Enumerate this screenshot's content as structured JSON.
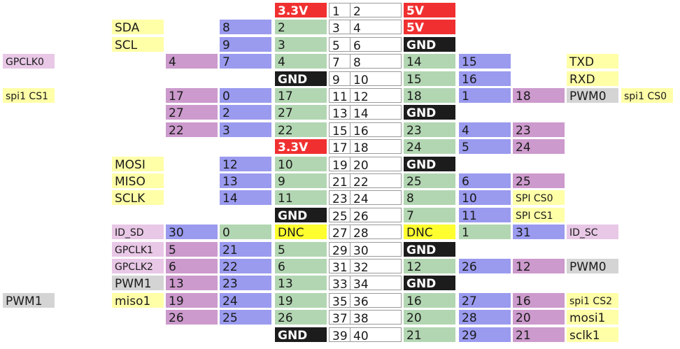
{
  "title": "",
  "colors": {
    "bcm": "#b2d6b2",
    "wpi": "#9a9aef",
    "alt": "#cc9acc",
    "fn": "#ffffa8",
    "pwm": "#d4d4d4",
    "id": "#e8c8e6",
    "power": "#f03030",
    "ground": "#1c1c1c",
    "dnc": "#ffff30",
    "pin": "#ffffff"
  },
  "left_columns": [
    "xfn",
    "fn",
    "alt",
    "wpi",
    "bcm",
    "pin"
  ],
  "right_columns": [
    "pin",
    "bcm",
    "wpi",
    "alt",
    "fn",
    "xfn"
  ],
  "rows": [
    {
      "left": [
        null,
        null,
        null,
        null,
        {
          "t": "3.3V",
          "c": "power"
        },
        {
          "t": "1",
          "c": "pin"
        }
      ],
      "right": [
        {
          "t": "2",
          "c": "pin"
        },
        {
          "t": "5V",
          "c": "power"
        },
        null,
        null,
        null,
        null
      ]
    },
    {
      "left": [
        null,
        {
          "t": "SDA",
          "c": "fn"
        },
        null,
        {
          "t": "8",
          "c": "wpi"
        },
        {
          "t": "2",
          "c": "bcm"
        },
        {
          "t": "3",
          "c": "pin"
        }
      ],
      "right": [
        {
          "t": "4",
          "c": "pin"
        },
        {
          "t": "5V",
          "c": "power"
        },
        null,
        null,
        null,
        null
      ]
    },
    {
      "left": [
        null,
        {
          "t": "SCL",
          "c": "fn"
        },
        null,
        {
          "t": "9",
          "c": "wpi"
        },
        {
          "t": "3",
          "c": "bcm"
        },
        {
          "t": "5",
          "c": "pin"
        }
      ],
      "right": [
        {
          "t": "6",
          "c": "pin"
        },
        {
          "t": "GND",
          "c": "ground"
        },
        null,
        null,
        null,
        null
      ]
    },
    {
      "left": [
        {
          "t": "GPCLK0",
          "c": "id"
        },
        null,
        {
          "t": "4",
          "c": "alt"
        },
        {
          "t": "7",
          "c": "wpi"
        },
        {
          "t": "4",
          "c": "bcm"
        },
        {
          "t": "7",
          "c": "pin"
        }
      ],
      "right": [
        {
          "t": "8",
          "c": "pin"
        },
        {
          "t": "14",
          "c": "bcm"
        },
        {
          "t": "15",
          "c": "wpi"
        },
        null,
        {
          "t": "TXD",
          "c": "fn"
        },
        null
      ]
    },
    {
      "left": [
        null,
        null,
        null,
        null,
        {
          "t": "GND",
          "c": "ground"
        },
        {
          "t": "9",
          "c": "pin"
        }
      ],
      "right": [
        {
          "t": "10",
          "c": "pin"
        },
        {
          "t": "15",
          "c": "bcm"
        },
        {
          "t": "16",
          "c": "wpi"
        },
        null,
        {
          "t": "RXD",
          "c": "fn"
        },
        null
      ]
    },
    {
      "left": [
        {
          "t": "spi1 CS1",
          "c": "fn"
        },
        null,
        {
          "t": "17",
          "c": "alt"
        },
        {
          "t": "0",
          "c": "wpi"
        },
        {
          "t": "17",
          "c": "bcm"
        },
        {
          "t": "11",
          "c": "pin"
        }
      ],
      "right": [
        {
          "t": "12",
          "c": "pin"
        },
        {
          "t": "18",
          "c": "bcm"
        },
        {
          "t": "1",
          "c": "wpi"
        },
        {
          "t": "18",
          "c": "alt"
        },
        {
          "t": "PWM0",
          "c": "pwm"
        },
        {
          "t": "spi1 CS0",
          "c": "fn"
        }
      ]
    },
    {
      "left": [
        null,
        null,
        {
          "t": "27",
          "c": "alt"
        },
        {
          "t": "2",
          "c": "wpi"
        },
        {
          "t": "27",
          "c": "bcm"
        },
        {
          "t": "13",
          "c": "pin"
        }
      ],
      "right": [
        {
          "t": "14",
          "c": "pin"
        },
        {
          "t": "GND",
          "c": "ground"
        },
        null,
        null,
        null,
        null
      ]
    },
    {
      "left": [
        null,
        null,
        {
          "t": "22",
          "c": "alt"
        },
        {
          "t": "3",
          "c": "wpi"
        },
        {
          "t": "22",
          "c": "bcm"
        },
        {
          "t": "15",
          "c": "pin"
        }
      ],
      "right": [
        {
          "t": "16",
          "c": "pin"
        },
        {
          "t": "23",
          "c": "bcm"
        },
        {
          "t": "4",
          "c": "wpi"
        },
        {
          "t": "23",
          "c": "alt"
        },
        null,
        null
      ]
    },
    {
      "left": [
        null,
        null,
        null,
        null,
        {
          "t": "3.3V",
          "c": "power"
        },
        {
          "t": "17",
          "c": "pin"
        }
      ],
      "right": [
        {
          "t": "18",
          "c": "pin"
        },
        {
          "t": "24",
          "c": "bcm"
        },
        {
          "t": "5",
          "c": "wpi"
        },
        {
          "t": "24",
          "c": "alt"
        },
        null,
        null
      ]
    },
    {
      "left": [
        null,
        {
          "t": "MOSI",
          "c": "fn"
        },
        null,
        {
          "t": "12",
          "c": "wpi"
        },
        {
          "t": "10",
          "c": "bcm"
        },
        {
          "t": "19",
          "c": "pin"
        }
      ],
      "right": [
        {
          "t": "20",
          "c": "pin"
        },
        {
          "t": "GND",
          "c": "ground"
        },
        null,
        null,
        null,
        null
      ]
    },
    {
      "left": [
        null,
        {
          "t": "MISO",
          "c": "fn"
        },
        null,
        {
          "t": "13",
          "c": "wpi"
        },
        {
          "t": "9",
          "c": "bcm"
        },
        {
          "t": "21",
          "c": "pin"
        }
      ],
      "right": [
        {
          "t": "22",
          "c": "pin"
        },
        {
          "t": "25",
          "c": "bcm"
        },
        {
          "t": "6",
          "c": "wpi"
        },
        {
          "t": "25",
          "c": "alt"
        },
        null,
        null
      ]
    },
    {
      "left": [
        null,
        {
          "t": "SCLK",
          "c": "fn"
        },
        null,
        {
          "t": "14",
          "c": "wpi"
        },
        {
          "t": "11",
          "c": "bcm"
        },
        {
          "t": "23",
          "c": "pin"
        }
      ],
      "right": [
        {
          "t": "24",
          "c": "pin"
        },
        {
          "t": "8",
          "c": "bcm"
        },
        {
          "t": "10",
          "c": "wpi"
        },
        {
          "t": "SPI CS0",
          "c": "fn"
        },
        null,
        null
      ]
    },
    {
      "left": [
        null,
        null,
        null,
        null,
        {
          "t": "GND",
          "c": "ground"
        },
        {
          "t": "25",
          "c": "pin"
        }
      ],
      "right": [
        {
          "t": "26",
          "c": "pin"
        },
        {
          "t": "7",
          "c": "bcm"
        },
        {
          "t": "11",
          "c": "wpi"
        },
        {
          "t": "SPI CS1",
          "c": "fn"
        },
        null,
        null
      ]
    },
    {
      "left": [
        null,
        {
          "t": "ID_SD",
          "c": "id"
        },
        {
          "t": "30",
          "c": "wpi"
        },
        {
          "t": "0",
          "c": "bcm"
        },
        {
          "t": "DNC",
          "c": "dnc"
        },
        {
          "t": "27",
          "c": "pin"
        }
      ],
      "right": [
        {
          "t": "28",
          "c": "pin"
        },
        {
          "t": "DNC",
          "c": "dnc"
        },
        {
          "t": "1",
          "c": "bcm"
        },
        {
          "t": "31",
          "c": "wpi"
        },
        {
          "t": "ID_SC",
          "c": "id"
        },
        null
      ]
    },
    {
      "left": [
        null,
        {
          "t": "GPCLK1",
          "c": "id"
        },
        {
          "t": "5",
          "c": "alt"
        },
        {
          "t": "21",
          "c": "wpi"
        },
        {
          "t": "5",
          "c": "bcm"
        },
        {
          "t": "29",
          "c": "pin"
        }
      ],
      "right": [
        {
          "t": "30",
          "c": "pin"
        },
        {
          "t": "GND",
          "c": "ground"
        },
        null,
        null,
        null,
        null
      ]
    },
    {
      "left": [
        null,
        {
          "t": "GPCLK2",
          "c": "id"
        },
        {
          "t": "6",
          "c": "alt"
        },
        {
          "t": "22",
          "c": "wpi"
        },
        {
          "t": "6",
          "c": "bcm"
        },
        {
          "t": "31",
          "c": "pin"
        }
      ],
      "right": [
        {
          "t": "32",
          "c": "pin"
        },
        {
          "t": "12",
          "c": "bcm"
        },
        {
          "t": "26",
          "c": "wpi"
        },
        {
          "t": "12",
          "c": "alt"
        },
        {
          "t": "PWM0",
          "c": "pwm"
        },
        null
      ]
    },
    {
      "left": [
        null,
        {
          "t": "PWM1",
          "c": "pwm"
        },
        {
          "t": "13",
          "c": "alt"
        },
        {
          "t": "23",
          "c": "wpi"
        },
        {
          "t": "13",
          "c": "bcm"
        },
        {
          "t": "33",
          "c": "pin"
        }
      ],
      "right": [
        {
          "t": "34",
          "c": "pin"
        },
        {
          "t": "GND",
          "c": "ground"
        },
        null,
        null,
        null,
        null
      ]
    },
    {
      "left": [
        {
          "t": "PWM1",
          "c": "pwm"
        },
        {
          "t": "miso1",
          "c": "fn"
        },
        {
          "t": "19",
          "c": "alt"
        },
        {
          "t": "24",
          "c": "wpi"
        },
        {
          "t": "19",
          "c": "bcm"
        },
        {
          "t": "35",
          "c": "pin"
        }
      ],
      "right": [
        {
          "t": "36",
          "c": "pin"
        },
        {
          "t": "16",
          "c": "bcm"
        },
        {
          "t": "27",
          "c": "wpi"
        },
        {
          "t": "16",
          "c": "alt"
        },
        {
          "t": "spi1 CS2",
          "c": "fn"
        },
        null
      ]
    },
    {
      "left": [
        null,
        null,
        {
          "t": "26",
          "c": "alt"
        },
        {
          "t": "25",
          "c": "wpi"
        },
        {
          "t": "26",
          "c": "bcm"
        },
        {
          "t": "37",
          "c": "pin"
        }
      ],
      "right": [
        {
          "t": "38",
          "c": "pin"
        },
        {
          "t": "20",
          "c": "bcm"
        },
        {
          "t": "28",
          "c": "wpi"
        },
        {
          "t": "20",
          "c": "alt"
        },
        {
          "t": "mosi1",
          "c": "fn"
        },
        null
      ]
    },
    {
      "left": [
        null,
        null,
        null,
        null,
        {
          "t": "GND",
          "c": "ground"
        },
        {
          "t": "39",
          "c": "pin"
        }
      ],
      "right": [
        {
          "t": "40",
          "c": "pin"
        },
        {
          "t": "21",
          "c": "bcm"
        },
        {
          "t": "29",
          "c": "wpi"
        },
        {
          "t": "21",
          "c": "alt"
        },
        {
          "t": "sclk1",
          "c": "fn"
        },
        null
      ]
    }
  ]
}
